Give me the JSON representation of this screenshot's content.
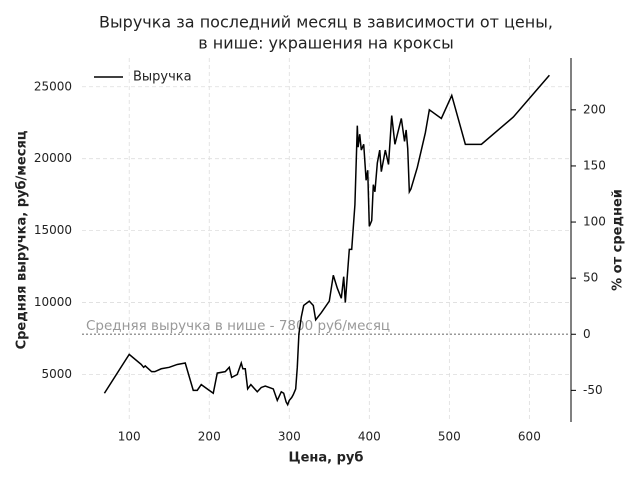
{
  "chart_data": {
    "type": "line",
    "title": [
      "Выручка за последний месяц в зависимости от цены,",
      "в нише: украшения на кроксы"
    ],
    "xlabel": "Цена, руб",
    "ylabel": "Средняя выручка, руб/месяц",
    "y2label": "% от средней",
    "xlim": [
      41,
      652
    ],
    "xticks": [
      100,
      200,
      300,
      400,
      500,
      600
    ],
    "ylim": [
      1700,
      27000
    ],
    "yticks": [
      5000,
      10000,
      15000,
      20000,
      25000
    ],
    "y2lim": [
      -78.2,
      246.2
    ],
    "y2ticks": [
      -50,
      0,
      50,
      100,
      150,
      200
    ],
    "grid": true,
    "legend": "upper left",
    "hline": {
      "y": 7800,
      "label": "Средняя выручка в нише - 7800 руб/месяц",
      "color": "#999999"
    },
    "x": [
      69,
      100,
      115,
      118,
      120,
      128,
      132,
      140,
      150,
      160,
      170,
      180,
      185,
      190,
      200,
      205,
      210,
      220,
      225,
      228,
      235,
      240,
      242,
      245,
      248,
      252,
      260,
      265,
      270,
      280,
      285,
      290,
      293,
      296,
      298,
      300,
      303,
      305,
      308,
      310,
      312,
      315,
      318,
      325,
      330,
      333,
      340,
      350,
      355,
      360,
      365,
      368,
      370,
      375,
      378,
      382,
      385,
      386,
      388,
      390,
      393,
      396,
      398,
      400,
      403,
      405,
      407,
      410,
      413,
      415,
      418,
      420,
      424,
      428,
      432,
      440,
      444,
      446,
      448,
      450,
      452,
      460,
      470,
      475,
      490,
      503,
      515,
      520,
      540,
      580,
      625
    ],
    "series": [
      {
        "name": "Выручка",
        "color": "#000000",
        "values": [
          3700,
          6400,
          5700,
          5500,
          5600,
          5200,
          5200,
          5400,
          5500,
          5700,
          5800,
          3900,
          3900,
          4300,
          3900,
          3700,
          5100,
          5200,
          5500,
          4800,
          5000,
          5800,
          5400,
          5400,
          4000,
          4300,
          3800,
          4100,
          4200,
          4000,
          3200,
          3800,
          3700,
          3100,
          2900,
          3200,
          3400,
          3600,
          4000,
          5500,
          7800,
          9000,
          9800,
          10100,
          9800,
          8800,
          9300,
          10100,
          11900,
          11000,
          10300,
          11800,
          10000,
          13700,
          13700,
          16800,
          22300,
          20800,
          21700,
          20600,
          21000,
          18500,
          19200,
          15300,
          15700,
          18200,
          17700,
          19700,
          20600,
          19100,
          20000,
          20600,
          19600,
          23000,
          21000,
          22800,
          21200,
          22000,
          20700,
          17700,
          17900,
          19400,
          21800,
          23400,
          22800,
          24400,
          22000,
          21000,
          21000,
          22900,
          25800
        ]
      }
    ]
  }
}
